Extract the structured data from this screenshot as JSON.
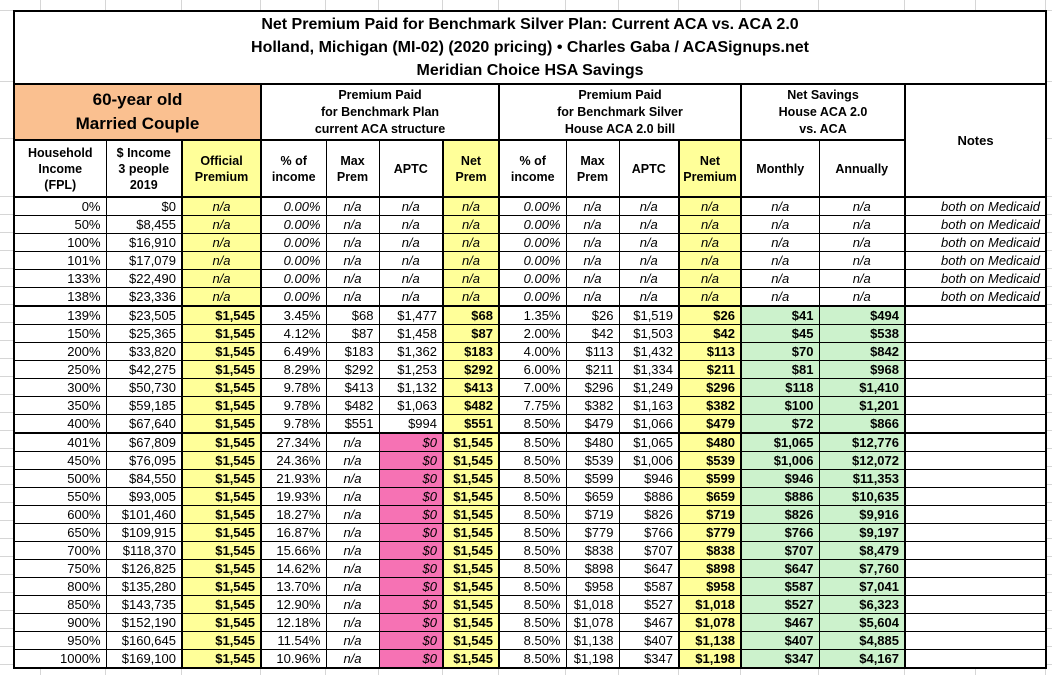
{
  "title": {
    "line1": "Net Premium Paid for Benchmark Silver Plan: Current ACA vs. ACA 2.0",
    "line2": "Holland, Michigan (MI-02) (2020 pricing) • Charles Gaba / ACASignups.net",
    "line3": "Meridian Choice HSA Savings"
  },
  "groups": {
    "couple": "60-year old\nMarried Couple",
    "current_aca": "Premium Paid\nfor Benchmark Plan\ncurrent ACA structure",
    "aca2": "Premium Paid\nfor Benchmark Silver\nHouse ACA 2.0 bill",
    "savings": "Net Savings\nHouse ACA 2.0\nvs. ACA",
    "notes": "Notes"
  },
  "columns": [
    "Household\nIncome\n(FPL)",
    "$ Income\n3 people\n2019",
    "Official\nPremium",
    "% of\nincome",
    "Max\nPrem",
    "APTC",
    "Net\nPrem",
    "% of\nincome",
    "Max\nPrem",
    "APTC",
    "Net\nPremium",
    "Monthly",
    "Annually"
  ],
  "colors": {
    "orange": "#FAC090",
    "yellow": "#FFFF99",
    "pink": "#F672B4",
    "green": "#CCF2CC"
  },
  "table": {
    "rows": [
      {
        "section": "medicaid",
        "cells": [
          "0%",
          "$0",
          "n/a",
          "0.00%",
          "n/a",
          "n/a",
          "n/a",
          "0.00%",
          "n/a",
          "n/a",
          "n/a",
          "n/a",
          "n/a",
          "both on Medicaid"
        ]
      },
      {
        "section": "medicaid",
        "cells": [
          "50%",
          "$8,455",
          "n/a",
          "0.00%",
          "n/a",
          "n/a",
          "n/a",
          "0.00%",
          "n/a",
          "n/a",
          "n/a",
          "n/a",
          "n/a",
          "both on Medicaid"
        ]
      },
      {
        "section": "medicaid",
        "cells": [
          "100%",
          "$16,910",
          "n/a",
          "0.00%",
          "n/a",
          "n/a",
          "n/a",
          "0.00%",
          "n/a",
          "n/a",
          "n/a",
          "n/a",
          "n/a",
          "both on Medicaid"
        ]
      },
      {
        "section": "medicaid",
        "cells": [
          "101%",
          "$17,079",
          "n/a",
          "0.00%",
          "n/a",
          "n/a",
          "n/a",
          "0.00%",
          "n/a",
          "n/a",
          "n/a",
          "n/a",
          "n/a",
          "both on Medicaid"
        ]
      },
      {
        "section": "medicaid",
        "cells": [
          "133%",
          "$22,490",
          "n/a",
          "0.00%",
          "n/a",
          "n/a",
          "n/a",
          "0.00%",
          "n/a",
          "n/a",
          "n/a",
          "n/a",
          "n/a",
          "both on Medicaid"
        ]
      },
      {
        "section": "medicaid",
        "cells": [
          "138%",
          "$23,336",
          "n/a",
          "0.00%",
          "n/a",
          "n/a",
          "n/a",
          "0.00%",
          "n/a",
          "n/a",
          "n/a",
          "n/a",
          "n/a",
          "both on Medicaid"
        ]
      },
      {
        "section": "subsidy",
        "cells": [
          "139%",
          "$23,505",
          "$1,545",
          "3.45%",
          "$68",
          "$1,477",
          "$68",
          "1.35%",
          "$26",
          "$1,519",
          "$26",
          "$41",
          "$494",
          ""
        ]
      },
      {
        "section": "subsidy",
        "cells": [
          "150%",
          "$25,365",
          "$1,545",
          "4.12%",
          "$87",
          "$1,458",
          "$87",
          "2.00%",
          "$42",
          "$1,503",
          "$42",
          "$45",
          "$538",
          ""
        ]
      },
      {
        "section": "subsidy",
        "cells": [
          "200%",
          "$33,820",
          "$1,545",
          "6.49%",
          "$183",
          "$1,362",
          "$183",
          "4.00%",
          "$113",
          "$1,432",
          "$113",
          "$70",
          "$842",
          ""
        ]
      },
      {
        "section": "subsidy",
        "cells": [
          "250%",
          "$42,275",
          "$1,545",
          "8.29%",
          "$292",
          "$1,253",
          "$292",
          "6.00%",
          "$211",
          "$1,334",
          "$211",
          "$81",
          "$968",
          ""
        ]
      },
      {
        "section": "subsidy",
        "cells": [
          "300%",
          "$50,730",
          "$1,545",
          "9.78%",
          "$413",
          "$1,132",
          "$413",
          "7.00%",
          "$296",
          "$1,249",
          "$296",
          "$118",
          "$1,410",
          ""
        ]
      },
      {
        "section": "subsidy",
        "cells": [
          "350%",
          "$59,185",
          "$1,545",
          "9.78%",
          "$482",
          "$1,063",
          "$482",
          "7.75%",
          "$382",
          "$1,163",
          "$382",
          "$100",
          "$1,201",
          ""
        ]
      },
      {
        "section": "subsidy",
        "cells": [
          "400%",
          "$67,640",
          "$1,545",
          "9.78%",
          "$551",
          "$994",
          "$551",
          "8.50%",
          "$479",
          "$1,066",
          "$479",
          "$72",
          "$866",
          ""
        ]
      },
      {
        "section": "nosub",
        "cells": [
          "401%",
          "$67,809",
          "$1,545",
          "27.34%",
          "n/a",
          "$0",
          "$1,545",
          "8.50%",
          "$480",
          "$1,065",
          "$480",
          "$1,065",
          "$12,776",
          ""
        ]
      },
      {
        "section": "nosub",
        "cells": [
          "450%",
          "$76,095",
          "$1,545",
          "24.36%",
          "n/a",
          "$0",
          "$1,545",
          "8.50%",
          "$539",
          "$1,006",
          "$539",
          "$1,006",
          "$12,072",
          ""
        ]
      },
      {
        "section": "nosub",
        "cells": [
          "500%",
          "$84,550",
          "$1,545",
          "21.93%",
          "n/a",
          "$0",
          "$1,545",
          "8.50%",
          "$599",
          "$946",
          "$599",
          "$946",
          "$11,353",
          ""
        ]
      },
      {
        "section": "nosub",
        "cells": [
          "550%",
          "$93,005",
          "$1,545",
          "19.93%",
          "n/a",
          "$0",
          "$1,545",
          "8.50%",
          "$659",
          "$886",
          "$659",
          "$886",
          "$10,635",
          ""
        ]
      },
      {
        "section": "nosub",
        "cells": [
          "600%",
          "$101,460",
          "$1,545",
          "18.27%",
          "n/a",
          "$0",
          "$1,545",
          "8.50%",
          "$719",
          "$826",
          "$719",
          "$826",
          "$9,916",
          ""
        ]
      },
      {
        "section": "nosub",
        "cells": [
          "650%",
          "$109,915",
          "$1,545",
          "16.87%",
          "n/a",
          "$0",
          "$1,545",
          "8.50%",
          "$779",
          "$766",
          "$779",
          "$766",
          "$9,197",
          ""
        ]
      },
      {
        "section": "nosub",
        "cells": [
          "700%",
          "$118,370",
          "$1,545",
          "15.66%",
          "n/a",
          "$0",
          "$1,545",
          "8.50%",
          "$838",
          "$707",
          "$838",
          "$707",
          "$8,479",
          ""
        ]
      },
      {
        "section": "nosub",
        "cells": [
          "750%",
          "$126,825",
          "$1,545",
          "14.62%",
          "n/a",
          "$0",
          "$1,545",
          "8.50%",
          "$898",
          "$647",
          "$898",
          "$647",
          "$7,760",
          ""
        ]
      },
      {
        "section": "nosub",
        "cells": [
          "800%",
          "$135,280",
          "$1,545",
          "13.70%",
          "n/a",
          "$0",
          "$1,545",
          "8.50%",
          "$958",
          "$587",
          "$958",
          "$587",
          "$7,041",
          ""
        ]
      },
      {
        "section": "nosub",
        "cells": [
          "850%",
          "$143,735",
          "$1,545",
          "12.90%",
          "n/a",
          "$0",
          "$1,545",
          "8.50%",
          "$1,018",
          "$527",
          "$1,018",
          "$527",
          "$6,323",
          ""
        ]
      },
      {
        "section": "nosub",
        "cells": [
          "900%",
          "$152,190",
          "$1,545",
          "12.18%",
          "n/a",
          "$0",
          "$1,545",
          "8.50%",
          "$1,078",
          "$467",
          "$1,078",
          "$467",
          "$5,604",
          ""
        ]
      },
      {
        "section": "nosub",
        "cells": [
          "950%",
          "$160,645",
          "$1,545",
          "11.54%",
          "n/a",
          "$0",
          "$1,545",
          "8.50%",
          "$1,138",
          "$407",
          "$1,138",
          "$407",
          "$4,885",
          ""
        ]
      },
      {
        "section": "nosub",
        "cells": [
          "1000%",
          "$169,100",
          "$1,545",
          "10.96%",
          "n/a",
          "$0",
          "$1,545",
          "8.50%",
          "$1,198",
          "$347",
          "$1,198",
          "$347",
          "$4,167",
          ""
        ]
      }
    ]
  }
}
